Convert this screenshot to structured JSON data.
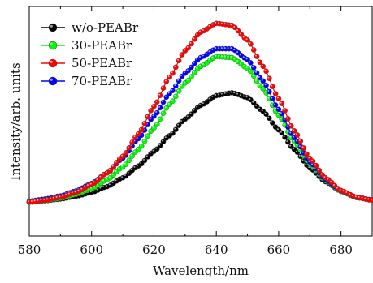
{
  "chart_data": {
    "type": "scatter",
    "xlabel": "Wavelength/nm",
    "ylabel": "Intensity/arb. units",
    "xlim": [
      580,
      690
    ],
    "ylim": [
      0,
      100
    ],
    "x_ticks": [
      580,
      600,
      620,
      640,
      660,
      680
    ],
    "y_ticks": [],
    "legend_position": "top-left",
    "series": [
      {
        "name": "w/o-PEABr",
        "color": "#000000",
        "marker": "circle-line",
        "points": [
          [
            580,
            9
          ],
          [
            585,
            9.7
          ],
          [
            590,
            10.6
          ],
          [
            595,
            12
          ],
          [
            600,
            14
          ],
          [
            605,
            17
          ],
          [
            610,
            21.5
          ],
          [
            615,
            27.5
          ],
          [
            620,
            35
          ],
          [
            625,
            43
          ],
          [
            630,
            51.5
          ],
          [
            635,
            58.5
          ],
          [
            640,
            63.5
          ],
          [
            645,
            65
          ],
          [
            650,
            62.5
          ],
          [
            655,
            55.5
          ],
          [
            660,
            46
          ],
          [
            665,
            36
          ],
          [
            670,
            26.5
          ],
          [
            675,
            19.5
          ],
          [
            680,
            14.5
          ],
          [
            685,
            11.5
          ],
          [
            690,
            10
          ]
        ]
      },
      {
        "name": "30-PEABr",
        "color": "#00ff00",
        "marker": "circle-line",
        "points": [
          [
            580,
            9
          ],
          [
            585,
            9.8
          ],
          [
            590,
            11
          ],
          [
            595,
            13
          ],
          [
            600,
            16
          ],
          [
            605,
            20.5
          ],
          [
            610,
            27
          ],
          [
            615,
            36
          ],
          [
            620,
            47
          ],
          [
            625,
            59
          ],
          [
            630,
            70
          ],
          [
            635,
            78.5
          ],
          [
            640,
            83.5
          ],
          [
            645,
            83
          ],
          [
            650,
            77.5
          ],
          [
            655,
            67
          ],
          [
            660,
            53.5
          ],
          [
            665,
            40
          ],
          [
            670,
            28.5
          ],
          [
            675,
            20
          ],
          [
            680,
            14.5
          ],
          [
            685,
            11.3
          ],
          [
            690,
            10
          ]
        ]
      },
      {
        "name": "50-PEABr",
        "color": "#ff0000",
        "marker": "circle-line",
        "points": [
          [
            580,
            9
          ],
          [
            585,
            10
          ],
          [
            590,
            11.5
          ],
          [
            595,
            14
          ],
          [
            600,
            18
          ],
          [
            605,
            24
          ],
          [
            610,
            32.5
          ],
          [
            615,
            44
          ],
          [
            620,
            58
          ],
          [
            625,
            73
          ],
          [
            630,
            86.5
          ],
          [
            635,
            96
          ],
          [
            640,
            100.5
          ],
          [
            645,
            99.5
          ],
          [
            650,
            92
          ],
          [
            655,
            78.5
          ],
          [
            660,
            62
          ],
          [
            665,
            45.5
          ],
          [
            670,
            31.5
          ],
          [
            675,
            21.5
          ],
          [
            680,
            15
          ],
          [
            685,
            11.5
          ],
          [
            690,
            10
          ]
        ]
      },
      {
        "name": "70-PEABr",
        "color": "#0000ff",
        "marker": "circle-line",
        "points": [
          [
            580,
            9.5
          ],
          [
            585,
            10.6
          ],
          [
            590,
            12.2
          ],
          [
            595,
            14.8
          ],
          [
            600,
            18.6
          ],
          [
            605,
            24
          ],
          [
            610,
            31.5
          ],
          [
            615,
            41.5
          ],
          [
            620,
            53
          ],
          [
            625,
            64.5
          ],
          [
            630,
            75
          ],
          [
            635,
            83
          ],
          [
            640,
            87.5
          ],
          [
            645,
            87.5
          ],
          [
            650,
            82
          ],
          [
            655,
            71
          ],
          [
            660,
            56.5
          ],
          [
            665,
            42
          ],
          [
            670,
            29.5
          ],
          [
            675,
            20.5
          ],
          [
            680,
            14.8
          ],
          [
            685,
            11.5
          ],
          [
            690,
            10.2
          ]
        ]
      }
    ]
  }
}
